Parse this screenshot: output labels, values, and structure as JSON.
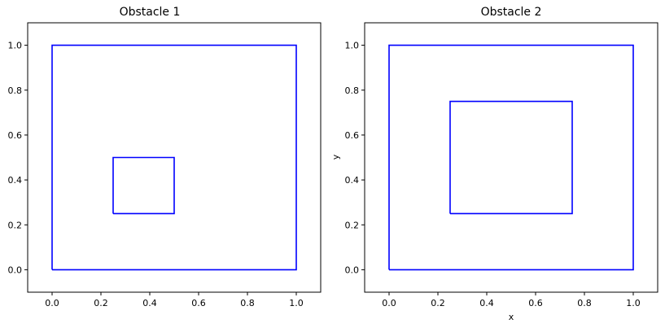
{
  "chart_data": [
    {
      "type": "line",
      "title": "Obstacle 1",
      "xlabel": "",
      "ylabel": "",
      "xlim": [
        -0.1,
        1.1
      ],
      "ylim": [
        -0.1,
        1.1
      ],
      "xticks": [
        0.0,
        0.2,
        0.4,
        0.6,
        0.8,
        1.0
      ],
      "yticks": [
        0.0,
        0.2,
        0.4,
        0.6,
        0.8,
        1.0
      ],
      "xtick_labels": [
        "0.0",
        "0.2",
        "0.4",
        "0.6",
        "0.8",
        "1.0"
      ],
      "ytick_labels": [
        "0.0",
        "0.2",
        "0.4",
        "0.6",
        "0.8",
        "1.0"
      ],
      "grid": false,
      "series": [
        {
          "color": "#0000ff",
          "x": [
            0,
            1,
            1,
            0,
            0
          ],
          "y": [
            0,
            0,
            1,
            1,
            0
          ]
        },
        {
          "color": "#0000ff",
          "x": [
            0.25,
            0.5,
            0.5,
            0.25,
            0.25
          ],
          "y": [
            0.25,
            0.25,
            0.5,
            0.5,
            0.25
          ]
        }
      ]
    },
    {
      "type": "line",
      "title": "Obstacle 2",
      "xlabel": "x",
      "ylabel": "y",
      "xlim": [
        -0.1,
        1.1
      ],
      "ylim": [
        -0.1,
        1.1
      ],
      "xticks": [
        0.0,
        0.2,
        0.4,
        0.6,
        0.8,
        1.0
      ],
      "yticks": [
        0.0,
        0.2,
        0.4,
        0.6,
        0.8,
        1.0
      ],
      "xtick_labels": [
        "0.0",
        "0.2",
        "0.4",
        "0.6",
        "0.8",
        "1.0"
      ],
      "ytick_labels": [
        "0.0",
        "0.2",
        "0.4",
        "0.6",
        "0.8",
        "1.0"
      ],
      "grid": false,
      "series": [
        {
          "color": "#0000ff",
          "x": [
            0,
            1,
            1,
            0,
            0
          ],
          "y": [
            0,
            0,
            1,
            1,
            0
          ]
        },
        {
          "color": "#0000ff",
          "x": [
            0.25,
            0.75,
            0.75,
            0.25,
            0.25
          ],
          "y": [
            0.25,
            0.25,
            0.75,
            0.75,
            0.25
          ]
        }
      ]
    }
  ]
}
